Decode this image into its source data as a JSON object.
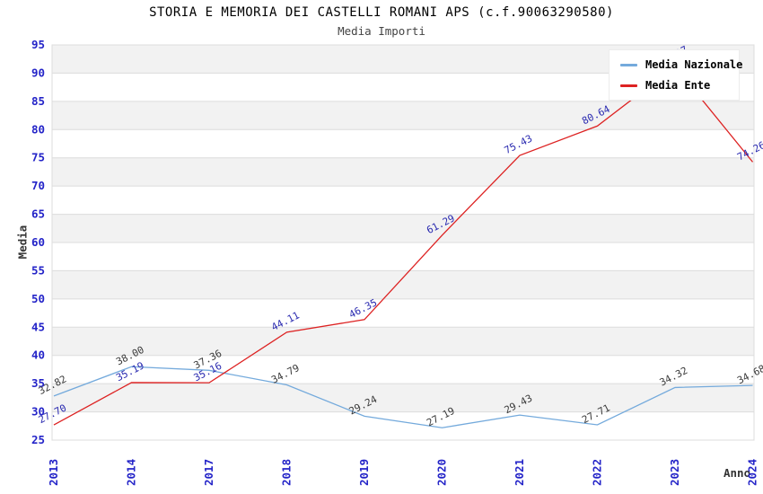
{
  "chart_data": {
    "type": "line",
    "title": "STORIA E MEMORIA DEI CASTELLI ROMANI APS (c.f.90063290580)",
    "subtitle": "Media Importi",
    "xlabel": "Anno",
    "ylabel": "Media",
    "categories": [
      "2013",
      "2014",
      "2017",
      "2018",
      "2019",
      "2020",
      "2021",
      "2022",
      "2023",
      "2024"
    ],
    "series": [
      {
        "name": "Media Nazionale",
        "color": "#74aadc",
        "label_color": "#3a3a3a",
        "values": [
          32.82,
          38.0,
          37.36,
          34.79,
          29.24,
          27.19,
          29.43,
          27.71,
          34.32,
          34.68
        ]
      },
      {
        "name": "Media Ente",
        "color": "#dd2222",
        "label_color": "#2a2ab0",
        "values": [
          27.7,
          35.19,
          35.16,
          44.11,
          46.35,
          61.29,
          75.43,
          80.64,
          91.17,
          74.26
        ]
      }
    ],
    "ylim": [
      25,
      95
    ],
    "ytick_step": 5,
    "yticks": [
      25,
      30,
      35,
      40,
      45,
      50,
      55,
      60,
      65,
      70,
      75,
      80,
      85,
      90,
      95
    ],
    "legend_position": "top-right",
    "grid": "horizontal stripes",
    "band_colors": [
      "#f2f2f2",
      "#ffffff"
    ],
    "gridline_color": "#dcdcdc",
    "tick_color": "#2424c8",
    "note": "2023 Media Ente label partially hidden behind legend"
  }
}
